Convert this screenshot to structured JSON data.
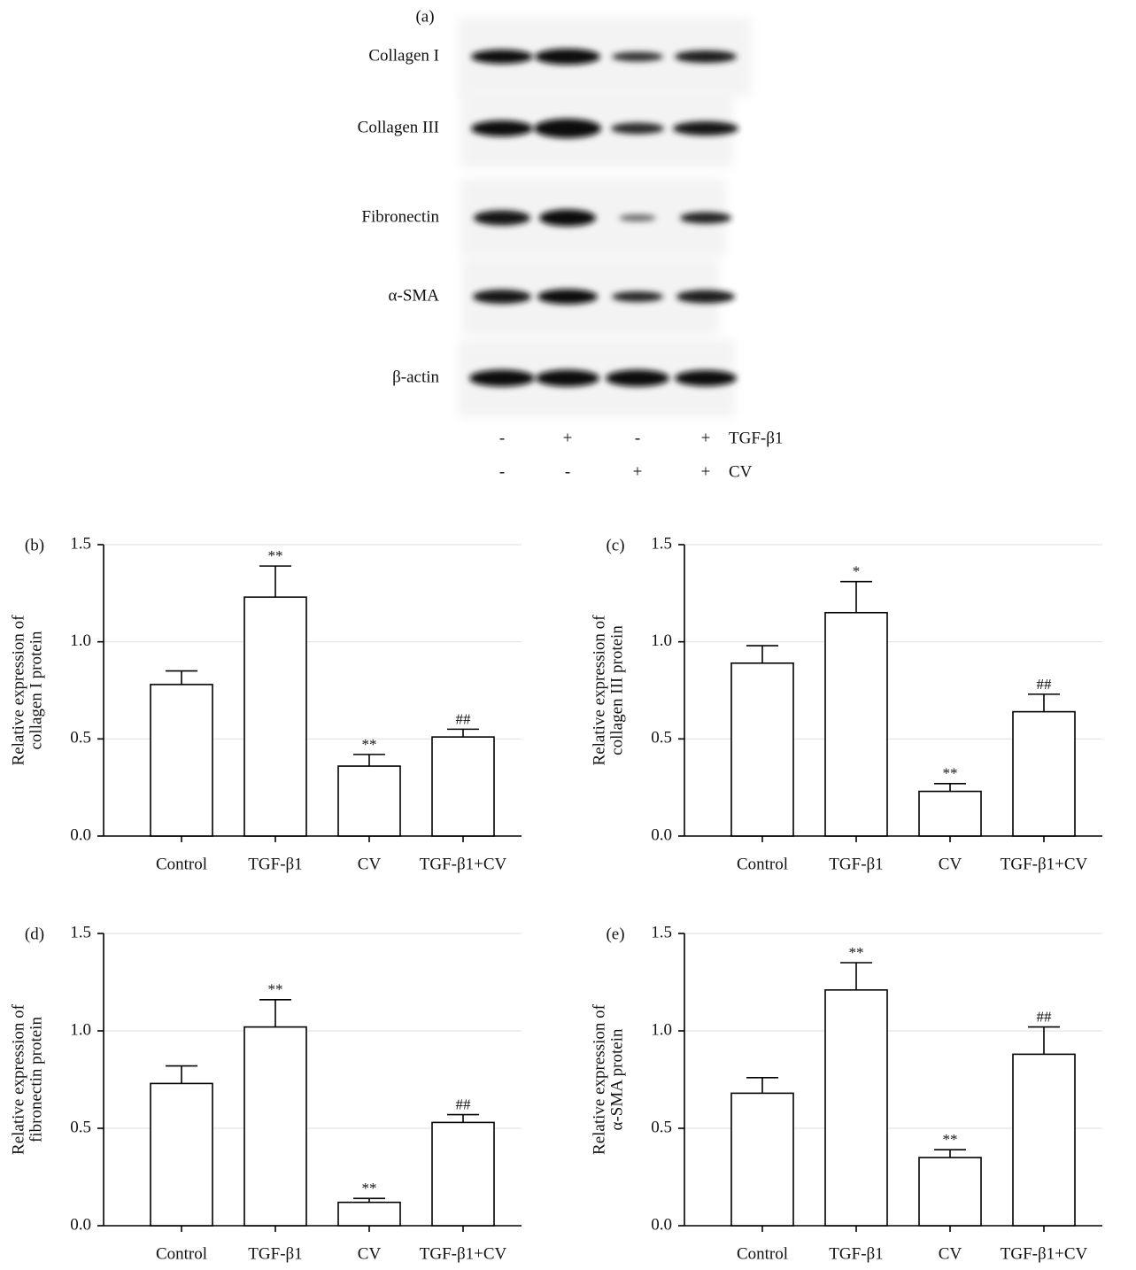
{
  "blot": {
    "panel_label": "(a)",
    "rows": [
      "Collagen I",
      "Collagen III",
      "Fibronectin",
      "α-SMA",
      "β-actin"
    ],
    "conditions": [
      {
        "name": "TGF-β1",
        "signs": [
          "-",
          "+",
          "-",
          "+"
        ]
      },
      {
        "name": "CV",
        "signs": [
          "-",
          "-",
          "+",
          "+"
        ]
      }
    ]
  },
  "chart_data": [
    {
      "type": "bar",
      "panel_label": "(b)",
      "ylabel": [
        "Relative expression of",
        "collagen I protein"
      ],
      "categories": [
        "Control",
        "TGF-β1",
        "CV",
        "TGF-β1+CV"
      ],
      "values": [
        0.78,
        1.23,
        0.36,
        0.51
      ],
      "errors": [
        0.07,
        0.16,
        0.06,
        0.04
      ],
      "annotations": [
        null,
        "**",
        "**",
        "##"
      ],
      "color": "#ffffff",
      "ylim": [
        0,
        1.5
      ],
      "yticks": [
        {
          "value": 0,
          "label": "0.0"
        },
        0.5,
        {
          "value": 1,
          "label": "1.0"
        },
        1.5
      ],
      "grid": true
    },
    {
      "type": "bar",
      "panel_label": "(c)",
      "ylabel": [
        "Relative expression of",
        "collagen III protein"
      ],
      "categories": [
        "Control",
        "TGF-β1",
        "CV",
        "TGF-β1+CV"
      ],
      "values": [
        0.89,
        1.15,
        0.23,
        0.64
      ],
      "errors": [
        0.09,
        0.16,
        0.04,
        0.09
      ],
      "annotations": [
        null,
        "*",
        "**",
        "##"
      ],
      "color": "#ffffff",
      "ylim": [
        0,
        1.5
      ],
      "yticks": [
        {
          "value": 0,
          "label": "0.0"
        },
        0.5,
        {
          "value": 1,
          "label": "1.0"
        },
        1.5
      ],
      "grid": true
    },
    {
      "type": "bar",
      "panel_label": "(d)",
      "ylabel": [
        "Relative expression of",
        "fibronectin protein"
      ],
      "categories": [
        "Control",
        "TGF-β1",
        "CV",
        "TGF-β1+CV"
      ],
      "values": [
        0.73,
        1.02,
        0.12,
        0.53
      ],
      "errors": [
        0.09,
        0.14,
        0.02,
        0.04
      ],
      "annotations": [
        null,
        "**",
        "**",
        "##"
      ],
      "color": "#ffffff",
      "ylim": [
        0,
        1.5
      ],
      "yticks": [
        {
          "value": 0,
          "label": "0.0"
        },
        0.5,
        {
          "value": 1,
          "label": "1.0"
        },
        1.5
      ],
      "grid": true
    },
    {
      "type": "bar",
      "panel_label": "(e)",
      "ylabel": [
        "Relative expression of",
        "α-SMA protein"
      ],
      "categories": [
        "Control",
        "TGF-β1",
        "CV",
        "TGF-β1+CV"
      ],
      "values": [
        0.68,
        1.21,
        0.35,
        0.88
      ],
      "errors": [
        0.08,
        0.14,
        0.04,
        0.14
      ],
      "annotations": [
        null,
        "**",
        "**",
        "##"
      ],
      "color": "#ffffff",
      "ylim": [
        0,
        1.5
      ],
      "yticks": [
        {
          "value": 0,
          "label": "0.0"
        },
        0.5,
        {
          "value": 1,
          "label": "1.0"
        },
        1.5
      ],
      "grid": true
    }
  ]
}
